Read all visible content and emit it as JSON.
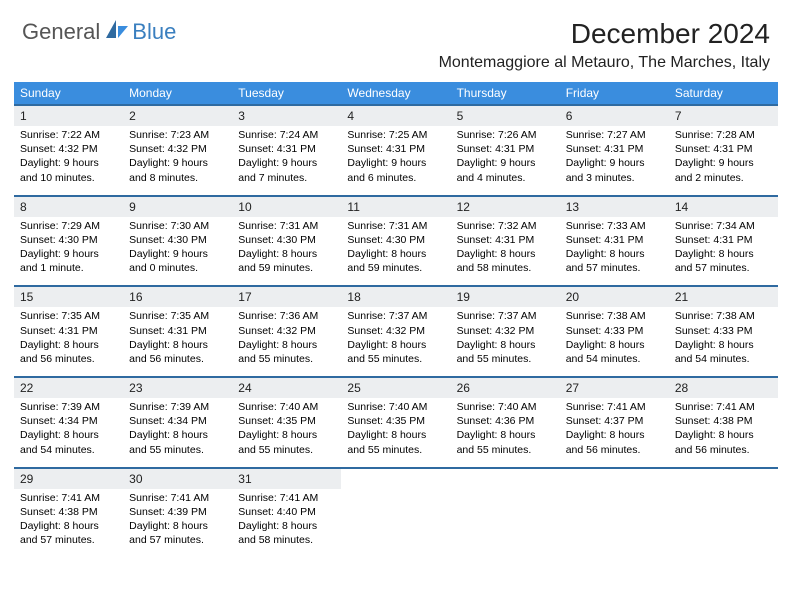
{
  "brand": {
    "text1": "General",
    "text2": "Blue"
  },
  "title": "December 2024",
  "location": "Montemaggiore al Metauro, The Marches, Italy",
  "colors": {
    "header_bg": "#3a8dde",
    "header_text": "#ffffff",
    "daynum_bg": "#eceef0",
    "border_top": "#2f6aa0",
    "logo_blue": "#3a7fbf"
  },
  "weekdays": [
    "Sunday",
    "Monday",
    "Tuesday",
    "Wednesday",
    "Thursday",
    "Friday",
    "Saturday"
  ],
  "weeks": [
    [
      {
        "n": "1",
        "sr": "7:22 AM",
        "ss": "4:32 PM",
        "dl": "9 hours and 10 minutes."
      },
      {
        "n": "2",
        "sr": "7:23 AM",
        "ss": "4:32 PM",
        "dl": "9 hours and 8 minutes."
      },
      {
        "n": "3",
        "sr": "7:24 AM",
        "ss": "4:31 PM",
        "dl": "9 hours and 7 minutes."
      },
      {
        "n": "4",
        "sr": "7:25 AM",
        "ss": "4:31 PM",
        "dl": "9 hours and 6 minutes."
      },
      {
        "n": "5",
        "sr": "7:26 AM",
        "ss": "4:31 PM",
        "dl": "9 hours and 4 minutes."
      },
      {
        "n": "6",
        "sr": "7:27 AM",
        "ss": "4:31 PM",
        "dl": "9 hours and 3 minutes."
      },
      {
        "n": "7",
        "sr": "7:28 AM",
        "ss": "4:31 PM",
        "dl": "9 hours and 2 minutes."
      }
    ],
    [
      {
        "n": "8",
        "sr": "7:29 AM",
        "ss": "4:30 PM",
        "dl": "9 hours and 1 minute."
      },
      {
        "n": "9",
        "sr": "7:30 AM",
        "ss": "4:30 PM",
        "dl": "9 hours and 0 minutes."
      },
      {
        "n": "10",
        "sr": "7:31 AM",
        "ss": "4:30 PM",
        "dl": "8 hours and 59 minutes."
      },
      {
        "n": "11",
        "sr": "7:31 AM",
        "ss": "4:30 PM",
        "dl": "8 hours and 59 minutes."
      },
      {
        "n": "12",
        "sr": "7:32 AM",
        "ss": "4:31 PM",
        "dl": "8 hours and 58 minutes."
      },
      {
        "n": "13",
        "sr": "7:33 AM",
        "ss": "4:31 PM",
        "dl": "8 hours and 57 minutes."
      },
      {
        "n": "14",
        "sr": "7:34 AM",
        "ss": "4:31 PM",
        "dl": "8 hours and 57 minutes."
      }
    ],
    [
      {
        "n": "15",
        "sr": "7:35 AM",
        "ss": "4:31 PM",
        "dl": "8 hours and 56 minutes."
      },
      {
        "n": "16",
        "sr": "7:35 AM",
        "ss": "4:31 PM",
        "dl": "8 hours and 56 minutes."
      },
      {
        "n": "17",
        "sr": "7:36 AM",
        "ss": "4:32 PM",
        "dl": "8 hours and 55 minutes."
      },
      {
        "n": "18",
        "sr": "7:37 AM",
        "ss": "4:32 PM",
        "dl": "8 hours and 55 minutes."
      },
      {
        "n": "19",
        "sr": "7:37 AM",
        "ss": "4:32 PM",
        "dl": "8 hours and 55 minutes."
      },
      {
        "n": "20",
        "sr": "7:38 AM",
        "ss": "4:33 PM",
        "dl": "8 hours and 54 minutes."
      },
      {
        "n": "21",
        "sr": "7:38 AM",
        "ss": "4:33 PM",
        "dl": "8 hours and 54 minutes."
      }
    ],
    [
      {
        "n": "22",
        "sr": "7:39 AM",
        "ss": "4:34 PM",
        "dl": "8 hours and 54 minutes."
      },
      {
        "n": "23",
        "sr": "7:39 AM",
        "ss": "4:34 PM",
        "dl": "8 hours and 55 minutes."
      },
      {
        "n": "24",
        "sr": "7:40 AM",
        "ss": "4:35 PM",
        "dl": "8 hours and 55 minutes."
      },
      {
        "n": "25",
        "sr": "7:40 AM",
        "ss": "4:35 PM",
        "dl": "8 hours and 55 minutes."
      },
      {
        "n": "26",
        "sr": "7:40 AM",
        "ss": "4:36 PM",
        "dl": "8 hours and 55 minutes."
      },
      {
        "n": "27",
        "sr": "7:41 AM",
        "ss": "4:37 PM",
        "dl": "8 hours and 56 minutes."
      },
      {
        "n": "28",
        "sr": "7:41 AM",
        "ss": "4:38 PM",
        "dl": "8 hours and 56 minutes."
      }
    ],
    [
      {
        "n": "29",
        "sr": "7:41 AM",
        "ss": "4:38 PM",
        "dl": "8 hours and 57 minutes."
      },
      {
        "n": "30",
        "sr": "7:41 AM",
        "ss": "4:39 PM",
        "dl": "8 hours and 57 minutes."
      },
      {
        "n": "31",
        "sr": "7:41 AM",
        "ss": "4:40 PM",
        "dl": "8 hours and 58 minutes."
      },
      null,
      null,
      null,
      null
    ]
  ],
  "labels": {
    "sunrise": "Sunrise: ",
    "sunset": "Sunset: ",
    "daylight": "Daylight: "
  }
}
